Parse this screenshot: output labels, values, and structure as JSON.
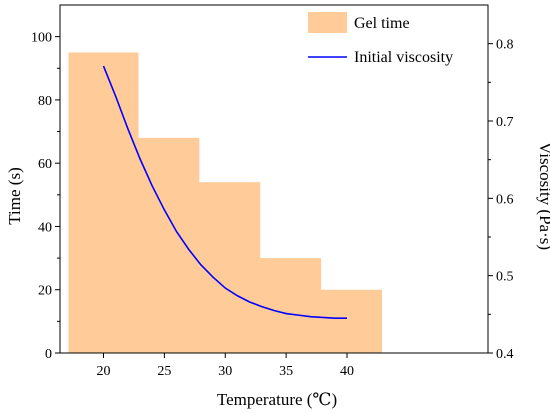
{
  "chart_data": {
    "type": "bar",
    "categories": [
      "20",
      "25",
      "30",
      "35",
      "40"
    ],
    "xlabel": "Temperature (℃)",
    "ylabel": "Time (s)",
    "y2label": "Viscosity (Pa·s)",
    "ylim": [
      0,
      110
    ],
    "y2lim": [
      0.4,
      0.85
    ],
    "yticks": [
      0,
      20,
      40,
      60,
      80,
      100
    ],
    "y2ticks": [
      0.4,
      0.5,
      0.6,
      0.7,
      0.8
    ],
    "grid": false,
    "legend_position": "top-right",
    "series": [
      {
        "name": "Gel time",
        "type": "bar",
        "axis": "left",
        "color": "#ffcc99",
        "values": [
          95,
          68,
          54,
          30,
          20
        ]
      },
      {
        "name": "Initial viscosity",
        "type": "line",
        "axis": "right",
        "color": "#0000ff",
        "x": [
          20,
          21,
          22,
          23,
          24,
          25,
          26,
          27,
          28,
          29,
          30,
          31,
          32,
          33,
          34,
          35,
          36,
          37,
          38,
          39,
          40
        ],
        "values": [
          0.771,
          0.732,
          0.69,
          0.651,
          0.616,
          0.585,
          0.557,
          0.534,
          0.514,
          0.498,
          0.484,
          0.474,
          0.466,
          0.46,
          0.455,
          0.451,
          0.449,
          0.447,
          0.446,
          0.445,
          0.445
        ]
      }
    ]
  }
}
